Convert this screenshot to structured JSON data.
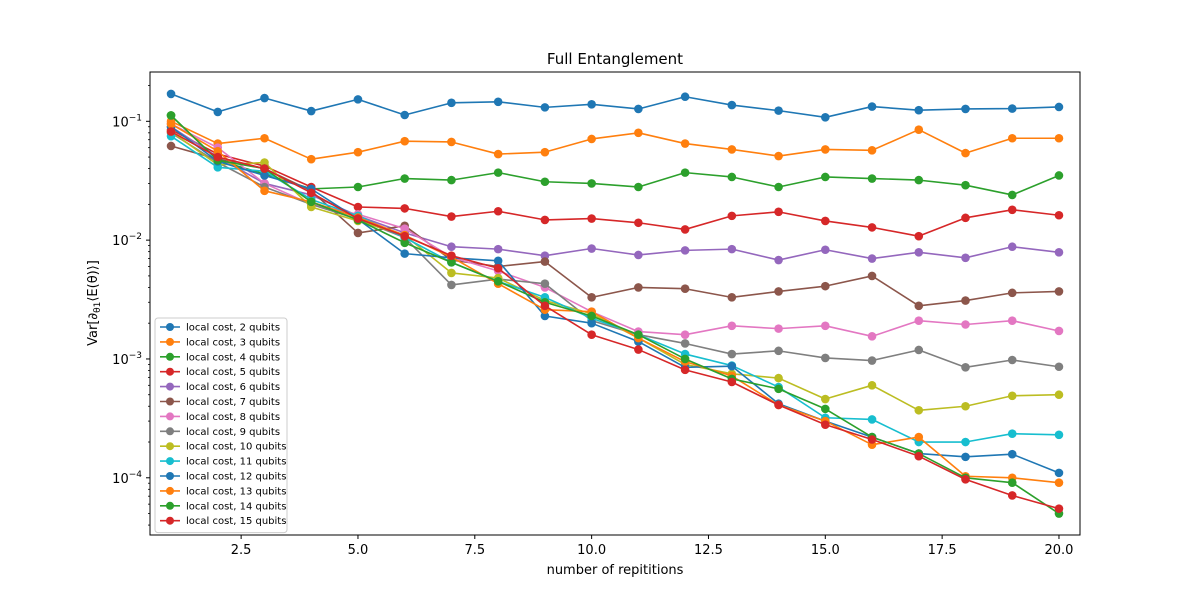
{
  "chart_data": {
    "type": "line",
    "title": "Full Entanglement",
    "xlabel": "number of repititions",
    "ylabel": "Var[∂θ1⟨E(θ)⟩]",
    "yscale": "log",
    "xlim": [
      0.55,
      20.45
    ],
    "ylim": [
      3.3e-05,
      0.26
    ],
    "x_ticks": [
      2.5,
      5.0,
      7.5,
      10.0,
      12.5,
      15.0,
      17.5,
      20.0
    ],
    "x_tick_labels": [
      "2.5",
      "5.0",
      "7.5",
      "10.0",
      "12.5",
      "15.0",
      "17.5",
      "20.0"
    ],
    "y_ticks": [
      0.0001,
      0.001,
      0.01,
      0.1
    ],
    "y_tick_labels": [
      "10^-4",
      "10^-3",
      "10^-2",
      "10^-1"
    ],
    "legend_position": "lower-left",
    "x": [
      1,
      2,
      3,
      4,
      5,
      6,
      7,
      8,
      9,
      10,
      11,
      12,
      13,
      14,
      15,
      16,
      17,
      18,
      19,
      20
    ],
    "series": [
      {
        "name": "local cost, 2 qubits",
        "color": "#1f77b4",
        "values": [
          0.17,
          0.12,
          0.157,
          0.122,
          0.153,
          0.113,
          0.143,
          0.146,
          0.131,
          0.139,
          0.127,
          0.161,
          0.137,
          0.123,
          0.108,
          0.133,
          0.124,
          0.127,
          0.128,
          0.132
        ]
      },
      {
        "name": "local cost, 3 qubits",
        "color": "#ff7f0e",
        "values": [
          0.1,
          0.065,
          0.072,
          0.048,
          0.055,
          0.068,
          0.067,
          0.053,
          0.055,
          0.071,
          0.08,
          0.065,
          0.058,
          0.051,
          0.058,
          0.057,
          0.085,
          0.054,
          0.072,
          0.072
        ]
      },
      {
        "name": "local cost, 4 qubits",
        "color": "#2ca02c",
        "values": [
          0.112,
          0.047,
          0.036,
          0.027,
          0.028,
          0.033,
          0.032,
          0.037,
          0.031,
          0.03,
          0.028,
          0.037,
          0.034,
          0.028,
          0.034,
          0.033,
          0.032,
          0.029,
          0.024,
          0.035
        ]
      },
      {
        "name": "local cost, 5 qubits",
        "color": "#d62728",
        "values": [
          0.085,
          0.053,
          0.042,
          0.028,
          0.019,
          0.0185,
          0.0158,
          0.0175,
          0.0148,
          0.0152,
          0.014,
          0.0123,
          0.016,
          0.0173,
          0.0145,
          0.0128,
          0.0108,
          0.0154,
          0.018,
          0.0162
        ]
      },
      {
        "name": "local cost, 6 qubits",
        "color": "#9467bd",
        "values": [
          0.09,
          0.05,
          0.03,
          0.024,
          0.016,
          0.0115,
          0.0088,
          0.0084,
          0.0074,
          0.0085,
          0.0075,
          0.0082,
          0.0084,
          0.0068,
          0.0083,
          0.007,
          0.0079,
          0.0071,
          0.0088,
          0.0079
        ]
      },
      {
        "name": "local cost, 7 qubits",
        "color": "#8c564b",
        "values": [
          0.062,
          0.048,
          0.04,
          0.026,
          0.0115,
          0.0132,
          0.0068,
          0.006,
          0.0066,
          0.0033,
          0.004,
          0.0039,
          0.0033,
          0.0037,
          0.0041,
          0.005,
          0.0028,
          0.0031,
          0.0036,
          0.0037
        ]
      },
      {
        "name": "local cost, 8 qubits",
        "color": "#e377c2",
        "values": [
          0.095,
          0.06,
          0.03,
          0.02,
          0.0165,
          0.0125,
          0.0072,
          0.0055,
          0.004,
          0.0025,
          0.0017,
          0.0016,
          0.0019,
          0.0018,
          0.0019,
          0.00155,
          0.0021,
          0.00195,
          0.0021,
          0.00172
        ]
      },
      {
        "name": "local cost, 9 qubits",
        "color": "#7f7f7f",
        "values": [
          0.08,
          0.045,
          0.028,
          0.02,
          0.015,
          0.0105,
          0.0042,
          0.0047,
          0.0043,
          0.0021,
          0.0016,
          0.00135,
          0.0011,
          0.00117,
          0.00102,
          0.00097,
          0.00119,
          0.00085,
          0.00098,
          0.00086
        ]
      },
      {
        "name": "local cost, 10 qubits",
        "color": "#bcbd22",
        "values": [
          0.082,
          0.043,
          0.045,
          0.019,
          0.0145,
          0.011,
          0.0053,
          0.0048,
          0.0031,
          0.0024,
          0.0015,
          0.0009,
          0.00075,
          0.00069,
          0.00046,
          0.0006,
          0.00037,
          0.0004,
          0.00049,
          0.0005
        ]
      },
      {
        "name": "local cost, 11 qubits",
        "color": "#17becf",
        "values": [
          0.075,
          0.041,
          0.038,
          0.022,
          0.016,
          0.0105,
          0.0065,
          0.0045,
          0.0033,
          0.0022,
          0.0016,
          0.0011,
          0.00088,
          0.00058,
          0.00032,
          0.00031,
          0.0002,
          0.0002,
          0.000235,
          0.00023
        ]
      },
      {
        "name": "local cost, 12 qubits",
        "color": "#1f77b4",
        "values": [
          0.09,
          0.046,
          0.035,
          0.027,
          0.015,
          0.0077,
          0.0071,
          0.0067,
          0.0023,
          0.002,
          0.0014,
          0.00085,
          0.00087,
          0.00042,
          0.0003,
          0.00022,
          0.00016,
          0.00015,
          0.000158,
          0.00011
        ]
      },
      {
        "name": "local cost, 13 qubits",
        "color": "#ff7f0e",
        "values": [
          0.095,
          0.056,
          0.026,
          0.021,
          0.0155,
          0.011,
          0.0072,
          0.0043,
          0.0026,
          0.0025,
          0.0015,
          0.00095,
          0.00072,
          0.00041,
          0.0003,
          0.00019,
          0.00022,
          0.000103,
          0.0001,
          9.1e-05
        ]
      },
      {
        "name": "local cost, 14 qubits",
        "color": "#2ca02c",
        "values": [
          0.112,
          0.047,
          0.04,
          0.021,
          0.0148,
          0.0095,
          0.0065,
          0.0045,
          0.003,
          0.0023,
          0.0016,
          0.001,
          0.00068,
          0.00056,
          0.00038,
          0.00022,
          0.00016,
          0.0001,
          9.1e-05,
          5e-05
        ]
      },
      {
        "name": "local cost, 15 qubits",
        "color": "#d62728",
        "values": [
          0.082,
          0.05,
          0.04,
          0.025,
          0.0152,
          0.0108,
          0.0074,
          0.0058,
          0.0028,
          0.0016,
          0.0012,
          0.00081,
          0.00064,
          0.00041,
          0.00028,
          0.00021,
          0.000152,
          9.7e-05,
          7.1e-05,
          5.5e-05
        ]
      }
    ]
  }
}
